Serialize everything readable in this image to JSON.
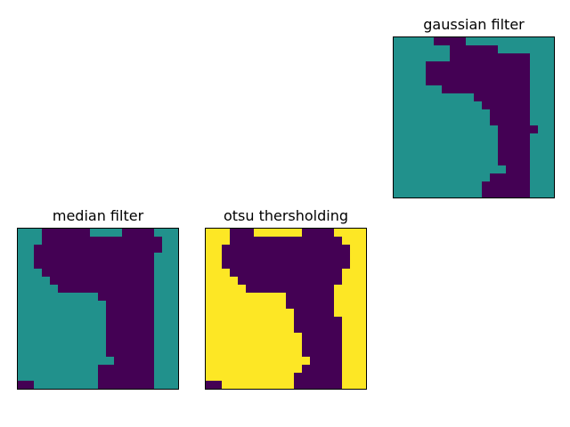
{
  "colors": {
    "class_0": "#440154",
    "class_1": "#21918c",
    "class_2": "#fde725",
    "frame": "#000000"
  },
  "chart_data": [
    {
      "type": "heatmap",
      "title": "gaussian filter",
      "xlabel": "",
      "ylabel": "",
      "axis_ticks": false,
      "grid": false,
      "colormap": "viridis",
      "grid_size": [
        20,
        20
      ],
      "color_keys": [
        "class_0",
        "class_1"
      ],
      "values": [
        "11111000011111111111",
        "11111110000001111111",
        "11111110000000000111",
        "11110000000000000111",
        "11110000000000000111",
        "11110000000000000111",
        "11111100000000000111",
        "11111111110000000111",
        "11111111111000000111",
        "11111111111100000111",
        "11111111111100000111",
        "11111111111110000011",
        "11111111111110000111",
        "11111111111110000111",
        "11111111111110000111",
        "11111111111110000111",
        "11111111111111000111",
        "11111111111100000111",
        "11111111111000000111",
        "11111111111000000111"
      ]
    },
    {
      "type": "heatmap",
      "title": "median filter",
      "xlabel": "",
      "ylabel": "",
      "axis_ticks": false,
      "grid": false,
      "colormap": "viridis",
      "grid_size": [
        20,
        20
      ],
      "color_keys": [
        "class_0",
        "class_1"
      ],
      "values": [
        "11100000011110000111",
        "11100000000000000011",
        "11000000000000000011",
        "11000000000000000111",
        "11000000000000000111",
        "11100000000000000111",
        "11110000000000000111",
        "11111000000000000111",
        "11111111110000000111",
        "11111111111000000111",
        "11111111111000000111",
        "11111111111000000111",
        "11111111111000000111",
        "11111111111000000111",
        "11111111111000000111",
        "11111111111000000111",
        "11111111111100000111",
        "11111111110000000111",
        "11111111110000000111",
        "00111111110000000111"
      ]
    },
    {
      "type": "heatmap",
      "title": "otsu thersholding",
      "xlabel": "",
      "ylabel": "",
      "axis_ticks": false,
      "grid": false,
      "colormap": "viridis",
      "grid_size": [
        20,
        20
      ],
      "color_keys": [
        "class_0",
        "class_2"
      ],
      "values": [
        "22200022222200002222",
        "22200000000000000222",
        "22000000000000000022",
        "22000000000000000022",
        "22000000000000000022",
        "22200000000000000222",
        "22220000000000000222",
        "22222000000000002222",
        "22222222220000002222",
        "22222222220000002222",
        "22222222222000002222",
        "22222222222000000222",
        "22222222222000000222",
        "22222222222200000222",
        "22222222222200000222",
        "22222222222200000222",
        "22222222222220000222",
        "22222222222200000222",
        "22222222222000000222",
        "00222222222000000222"
      ]
    }
  ]
}
